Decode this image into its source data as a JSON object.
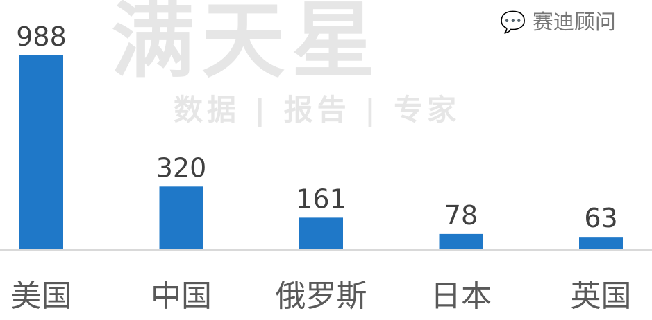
{
  "chart_data": {
    "type": "bar",
    "categories": [
      "美国",
      "中国",
      "俄罗斯",
      "日本",
      "英国"
    ],
    "values": [
      988,
      320,
      161,
      78,
      63
    ],
    "title": "",
    "xlabel": "",
    "ylabel": "",
    "ylim": [
      0,
      988
    ],
    "grid": false,
    "bar_color": "#1f78c8",
    "data_labels": true
  },
  "watermark": {
    "main": "满天星",
    "sub": "数据 | 报告 | 专家",
    "corner": "赛迪顾问"
  }
}
